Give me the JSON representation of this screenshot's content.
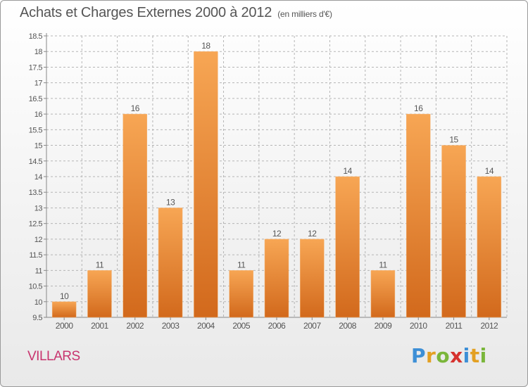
{
  "title": "Achats et Charges Externes 2000 à 2012",
  "subtitle": "(en milliers d'€)",
  "commune": "VILLARS",
  "logo": {
    "letters": [
      "P",
      "r",
      "o",
      "x",
      "i",
      "t",
      "i"
    ],
    "colors": [
      "#3d8fd6",
      "#e3a022",
      "#7ab63a",
      "#d6322e",
      "#3d8fd6",
      "#e3a022",
      "#7ab63a"
    ]
  },
  "chart_data": {
    "type": "bar",
    "categories": [
      "2000",
      "2001",
      "2002",
      "2003",
      "2004",
      "2005",
      "2006",
      "2007",
      "2008",
      "2009",
      "2010",
      "2011",
      "2012"
    ],
    "values": [
      10,
      11,
      16,
      13,
      18,
      11,
      12,
      12,
      14,
      11,
      16,
      15,
      14
    ],
    "data_labels": [
      "10",
      "11",
      "16",
      "13",
      "18",
      "11",
      "12",
      "12",
      "14",
      "11",
      "16",
      "15",
      "14"
    ],
    "title": "Achats et Charges Externes 2000 à 2012",
    "ylim": [
      9.5,
      18.5
    ],
    "yticks": [
      9.5,
      10,
      10.5,
      11,
      11.5,
      12,
      12.5,
      13,
      13.5,
      14,
      14.5,
      15,
      15.5,
      16,
      16.5,
      17,
      17.5,
      18,
      18.5
    ],
    "ytick_labels": [
      "9.5",
      "10",
      "10.5",
      "11",
      "11.5",
      "12",
      "12.5",
      "13",
      "13.5",
      "14",
      "14.5",
      "15",
      "15.5",
      "16",
      "16.5",
      "17",
      "17.5",
      "18",
      "18.5"
    ],
    "grid": true,
    "colors": {
      "bar_top": "#f7a654",
      "bar_bottom": "#d2691c",
      "grid": "#b5b5b5",
      "text": "#555555"
    }
  }
}
